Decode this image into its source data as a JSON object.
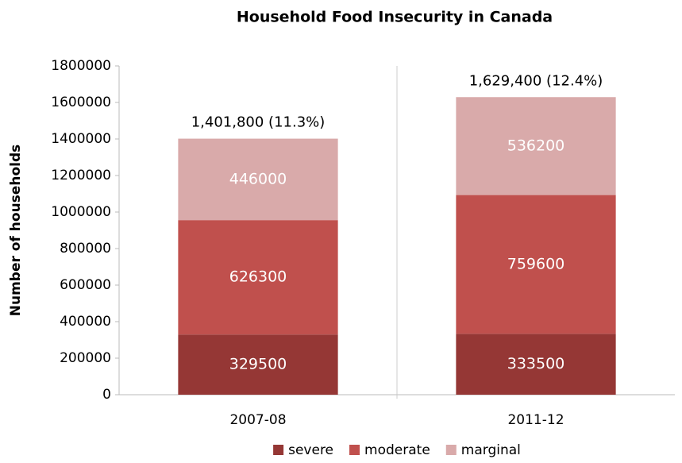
{
  "chart_data": {
    "type": "bar",
    "stacked": true,
    "title": "Household Food Insecurity in Canada",
    "y_label": "Number of households",
    "categories": [
      "2007-08",
      "2011-12"
    ],
    "series": [
      {
        "name": "severe",
        "color": "#953735",
        "values": [
          329500,
          333500
        ]
      },
      {
        "name": "moderate",
        "color": "#c0504d",
        "values": [
          626300,
          759600
        ]
      },
      {
        "name": "marginal",
        "color": "#d9aaaa",
        "values": [
          446000,
          536200
        ]
      }
    ],
    "annotations": [
      "1,401,800 (11.3%)",
      "1,629,400 (12.4%)"
    ],
    "ylim": [
      0,
      1800000
    ],
    "yticks": [
      0,
      200000,
      400000,
      600000,
      800000,
      1000000,
      1200000,
      1400000,
      1600000,
      1800000
    ],
    "grid": false,
    "legend": "bottom"
  }
}
